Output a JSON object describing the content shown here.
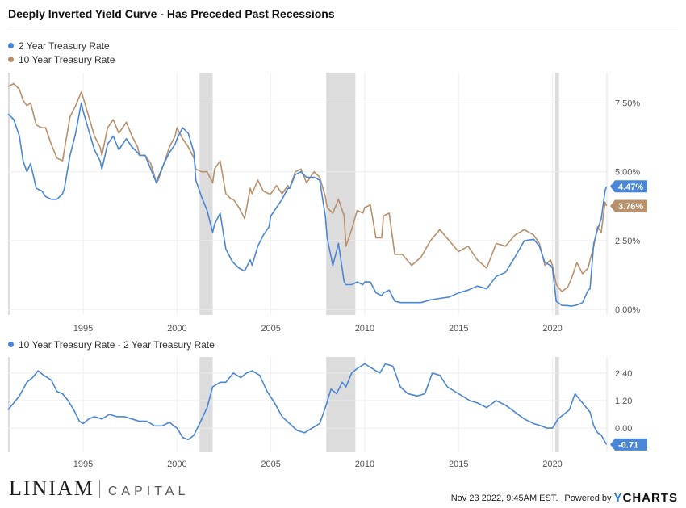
{
  "title": "Deeply Inverted Yield Curve - Has Preceded Past Recessions",
  "legend_top": [
    {
      "label": "2 Year Treasury Rate",
      "color": "#4a86d8"
    },
    {
      "label": "10 Year Treasury Rate",
      "color": "#b8906a"
    }
  ],
  "legend_bottom": [
    {
      "label": "10 Year Treasury Rate - 2 Year Treasury Rate",
      "color": "#4a86d8"
    }
  ],
  "footer": {
    "logo_main": "LINIAM",
    "logo_sub": "CAPITAL",
    "timestamp": "Nov 23 2022, 9:45AM EST.",
    "powered": "Powered by",
    "brand_y": "Y",
    "brand_rest": "CHARTS"
  },
  "chart_data": [
    {
      "type": "line",
      "xlim": [
        1991.0,
        2022.9
      ],
      "ylim": [
        -0.2,
        8.6
      ],
      "x_ticks": [
        1995,
        2000,
        2005,
        2010,
        2015,
        2020
      ],
      "x_tick_labels": [
        "1995",
        "2000",
        "2005",
        "2010",
        "2015",
        "2020"
      ],
      "y_ticks": [
        0,
        2.5,
        5,
        7.5
      ],
      "y_tick_labels": [
        "0.00%",
        "2.50%",
        "5.00%",
        "7.50%"
      ],
      "recessions": [
        [
          2001.2,
          2001.9
        ],
        [
          2007.95,
          2009.5
        ],
        [
          2020.15,
          2020.35
        ]
      ],
      "last_value_labels": [
        {
          "series": "2 Year Treasury Rate",
          "value": 4.47,
          "label": "4.47%"
        },
        {
          "series": "10 Year Treasury Rate",
          "value": 3.76,
          "label": "3.76%"
        }
      ],
      "series": [
        {
          "name": "2 Year Treasury Rate",
          "color": "#4a86d8",
          "x": [
            1991.0,
            1991.3,
            1991.6,
            1991.8,
            1992.0,
            1992.2,
            1992.5,
            1992.8,
            1993.0,
            1993.3,
            1993.6,
            1993.9,
            1994.0,
            1994.3,
            1994.6,
            1994.9,
            1995.0,
            1995.3,
            1995.6,
            1995.9,
            1996.0,
            1996.3,
            1996.6,
            1996.9,
            1997.0,
            1997.3,
            1997.6,
            1997.9,
            1998.0,
            1998.3,
            1998.6,
            1998.9,
            1999.0,
            1999.3,
            1999.6,
            1999.9,
            2000.0,
            2000.3,
            2000.6,
            2000.9,
            2001.0,
            2001.3,
            2001.6,
            2001.9,
            2002.0,
            2002.3,
            2002.6,
            2002.9,
            2003.0,
            2003.3,
            2003.6,
            2003.9,
            2004.0,
            2004.3,
            2004.6,
            2004.9,
            2005.0,
            2005.3,
            2005.6,
            2005.9,
            2006.0,
            2006.3,
            2006.6,
            2006.9,
            2007.0,
            2007.3,
            2007.6,
            2007.9,
            2008.0,
            2008.3,
            2008.6,
            2008.9,
            2009.0,
            2009.3,
            2009.6,
            2009.9,
            2010.0,
            2010.3,
            2010.6,
            2010.9,
            2011.0,
            2011.3,
            2011.6,
            2011.9,
            2012.0,
            2012.5,
            2013.0,
            2013.5,
            2014.0,
            2014.5,
            2015.0,
            2015.5,
            2016.0,
            2016.5,
            2017.0,
            2017.5,
            2018.0,
            2018.5,
            2019.0,
            2019.3,
            2019.6,
            2019.9,
            2020.0,
            2020.2,
            2020.5,
            2020.8,
            2021.0,
            2021.3,
            2021.6,
            2021.9,
            2022.0,
            2022.2,
            2022.4,
            2022.6,
            2022.8,
            2022.88
          ],
          "values": [
            7.1,
            6.9,
            6.3,
            5.4,
            5.0,
            5.3,
            4.4,
            4.3,
            4.1,
            4.0,
            4.0,
            4.2,
            4.4,
            5.6,
            6.4,
            7.5,
            7.2,
            6.5,
            5.8,
            5.4,
            5.1,
            6.0,
            6.3,
            5.8,
            5.9,
            6.2,
            5.9,
            5.7,
            5.6,
            5.6,
            5.1,
            4.6,
            4.8,
            5.3,
            5.7,
            6.0,
            6.2,
            6.6,
            6.4,
            5.7,
            4.7,
            4.1,
            3.6,
            2.8,
            3.1,
            3.5,
            2.2,
            1.8,
            1.7,
            1.5,
            1.4,
            1.8,
            1.6,
            2.3,
            2.7,
            3.0,
            3.4,
            3.7,
            4.0,
            4.4,
            4.4,
            4.9,
            5.0,
            4.8,
            4.8,
            4.8,
            4.7,
            3.4,
            2.6,
            1.6,
            2.4,
            1.0,
            0.9,
            0.9,
            1.0,
            0.9,
            1.0,
            1.0,
            0.6,
            0.5,
            0.6,
            0.7,
            0.3,
            0.25,
            0.25,
            0.25,
            0.25,
            0.35,
            0.4,
            0.45,
            0.6,
            0.7,
            0.85,
            0.75,
            1.2,
            1.35,
            1.9,
            2.5,
            2.55,
            2.3,
            1.7,
            1.6,
            1.5,
            0.3,
            0.15,
            0.14,
            0.12,
            0.16,
            0.25,
            0.7,
            0.75,
            2.4,
            2.9,
            3.3,
            4.3,
            4.47
          ]
        },
        {
          "name": "10 Year Treasury Rate",
          "color": "#b8906a",
          "x": [
            1991.0,
            1991.3,
            1991.6,
            1991.8,
            1992.0,
            1992.2,
            1992.5,
            1992.8,
            1993.0,
            1993.3,
            1993.6,
            1993.9,
            1994.0,
            1994.3,
            1994.6,
            1994.9,
            1995.0,
            1995.3,
            1995.6,
            1995.9,
            1996.0,
            1996.3,
            1996.6,
            1996.9,
            1997.0,
            1997.3,
            1997.6,
            1997.9,
            1998.0,
            1998.3,
            1998.6,
            1998.9,
            1999.0,
            1999.3,
            1999.6,
            1999.9,
            2000.0,
            2000.3,
            2000.6,
            2000.9,
            2001.0,
            2001.3,
            2001.6,
            2001.9,
            2002.0,
            2002.3,
            2002.6,
            2002.9,
            2003.0,
            2003.3,
            2003.6,
            2003.9,
            2004.0,
            2004.3,
            2004.6,
            2004.9,
            2005.0,
            2005.3,
            2005.6,
            2005.9,
            2006.0,
            2006.3,
            2006.6,
            2006.9,
            2007.0,
            2007.3,
            2007.6,
            2007.9,
            2008.0,
            2008.3,
            2008.6,
            2008.9,
            2009.0,
            2009.3,
            2009.6,
            2009.9,
            2010.0,
            2010.3,
            2010.6,
            2010.9,
            2011.0,
            2011.3,
            2011.6,
            2011.9,
            2012.0,
            2012.5,
            2013.0,
            2013.5,
            2014.0,
            2014.5,
            2015.0,
            2015.5,
            2016.0,
            2016.5,
            2017.0,
            2017.5,
            2018.0,
            2018.5,
            2019.0,
            2019.3,
            2019.6,
            2019.9,
            2020.0,
            2020.2,
            2020.5,
            2020.8,
            2021.0,
            2021.3,
            2021.6,
            2021.9,
            2022.0,
            2022.2,
            2022.4,
            2022.6,
            2022.8,
            2022.88
          ],
          "values": [
            8.1,
            8.2,
            8.0,
            7.6,
            7.4,
            7.5,
            6.7,
            6.6,
            6.6,
            6.0,
            5.5,
            5.4,
            5.8,
            7.0,
            7.4,
            7.9,
            7.7,
            7.0,
            6.3,
            5.9,
            5.6,
            6.6,
            6.9,
            6.4,
            6.5,
            6.8,
            6.3,
            5.9,
            5.6,
            5.6,
            5.3,
            4.6,
            4.7,
            5.3,
            5.9,
            6.3,
            6.6,
            6.2,
            5.9,
            5.5,
            5.1,
            5.0,
            5.0,
            4.6,
            5.1,
            5.4,
            4.2,
            4.0,
            4.0,
            3.7,
            3.3,
            4.4,
            4.2,
            4.7,
            4.3,
            4.2,
            4.2,
            4.5,
            4.2,
            4.5,
            4.4,
            5.0,
            5.1,
            4.6,
            4.7,
            5.0,
            4.8,
            4.1,
            3.7,
            3.5,
            4.0,
            3.4,
            2.3,
            2.9,
            3.6,
            3.5,
            3.7,
            3.8,
            2.6,
            2.6,
            3.4,
            3.5,
            2.0,
            2.0,
            2.0,
            1.6,
            1.9,
            2.5,
            2.9,
            2.5,
            2.1,
            2.3,
            1.8,
            1.5,
            2.4,
            2.3,
            2.7,
            2.9,
            2.7,
            2.4,
            1.6,
            1.8,
            1.6,
            0.9,
            0.65,
            0.8,
            1.1,
            1.7,
            1.3,
            1.5,
            1.8,
            2.3,
            3.0,
            2.8,
            3.9,
            3.76
          ]
        }
      ]
    },
    {
      "type": "line",
      "xlim": [
        1991.0,
        2022.9
      ],
      "ylim": [
        -1.05,
        3.1
      ],
      "x_ticks": [
        1995,
        2000,
        2005,
        2010,
        2015,
        2020
      ],
      "x_tick_labels": [
        "1995",
        "2000",
        "2005",
        "2010",
        "2015",
        "2020"
      ],
      "y_ticks": [
        0,
        1.2,
        2.4
      ],
      "y_tick_labels": [
        "0.00",
        "1.20",
        "2.40"
      ],
      "recessions": [
        [
          2001.2,
          2001.9
        ],
        [
          2007.95,
          2009.5
        ],
        [
          2020.15,
          2020.35
        ]
      ],
      "last_value_labels": [
        {
          "series": "10 Year Treasury Rate - 2 Year Treasury Rate",
          "value": -0.71,
          "label": "-0.71"
        }
      ],
      "series": [
        {
          "name": "10 Year Treasury Rate - 2 Year Treasury Rate",
          "color": "#4a86d8",
          "x": [
            1991.0,
            1991.3,
            1991.6,
            1992.0,
            1992.3,
            1992.6,
            1992.9,
            1993.3,
            1993.6,
            1993.9,
            1994.2,
            1994.5,
            1994.8,
            1995.0,
            1995.3,
            1995.6,
            1996.0,
            1996.4,
            1996.8,
            1997.2,
            1997.6,
            1998.0,
            1998.4,
            1998.8,
            1999.2,
            1999.6,
            2000.0,
            2000.3,
            2000.6,
            2000.9,
            2001.2,
            2001.6,
            2001.9,
            2002.3,
            2002.6,
            2003.0,
            2003.4,
            2003.7,
            2004.0,
            2004.4,
            2004.8,
            2005.2,
            2005.6,
            2006.0,
            2006.4,
            2006.8,
            2007.2,
            2007.6,
            2007.9,
            2008.2,
            2008.5,
            2008.8,
            2009.0,
            2009.3,
            2009.6,
            2010.0,
            2010.4,
            2010.8,
            2011.1,
            2011.5,
            2011.9,
            2012.3,
            2012.8,
            2013.2,
            2013.6,
            2014.0,
            2014.4,
            2014.8,
            2015.2,
            2015.6,
            2016.0,
            2016.5,
            2017.0,
            2017.5,
            2018.0,
            2018.5,
            2019.0,
            2019.4,
            2019.7,
            2020.0,
            2020.3,
            2020.6,
            2020.9,
            2021.2,
            2021.5,
            2021.8,
            2022.0,
            2022.2,
            2022.4,
            2022.6,
            2022.8,
            2022.88
          ],
          "values": [
            0.8,
            1.1,
            1.4,
            2.0,
            2.2,
            2.5,
            2.3,
            2.1,
            1.6,
            1.5,
            1.2,
            0.8,
            0.3,
            0.2,
            0.4,
            0.5,
            0.4,
            0.6,
            0.5,
            0.5,
            0.4,
            0.3,
            0.3,
            0.1,
            0.1,
            0.25,
            0.0,
            -0.4,
            -0.5,
            -0.3,
            0.2,
            0.9,
            1.8,
            2.0,
            2.0,
            2.4,
            2.2,
            2.4,
            2.5,
            2.3,
            1.6,
            1.1,
            0.5,
            0.2,
            -0.1,
            -0.2,
            0.0,
            0.2,
            0.9,
            1.7,
            1.5,
            2.0,
            1.8,
            2.4,
            2.6,
            2.8,
            2.6,
            2.4,
            2.8,
            2.7,
            1.8,
            1.5,
            1.4,
            1.5,
            2.4,
            2.3,
            1.8,
            1.6,
            1.4,
            1.2,
            1.1,
            0.9,
            1.2,
            1.0,
            0.7,
            0.4,
            0.2,
            0.1,
            0.0,
            0.0,
            0.4,
            0.6,
            0.8,
            1.5,
            1.2,
            0.9,
            0.7,
            0.1,
            -0.2,
            -0.3,
            -0.6,
            -0.71
          ]
        }
      ]
    }
  ]
}
